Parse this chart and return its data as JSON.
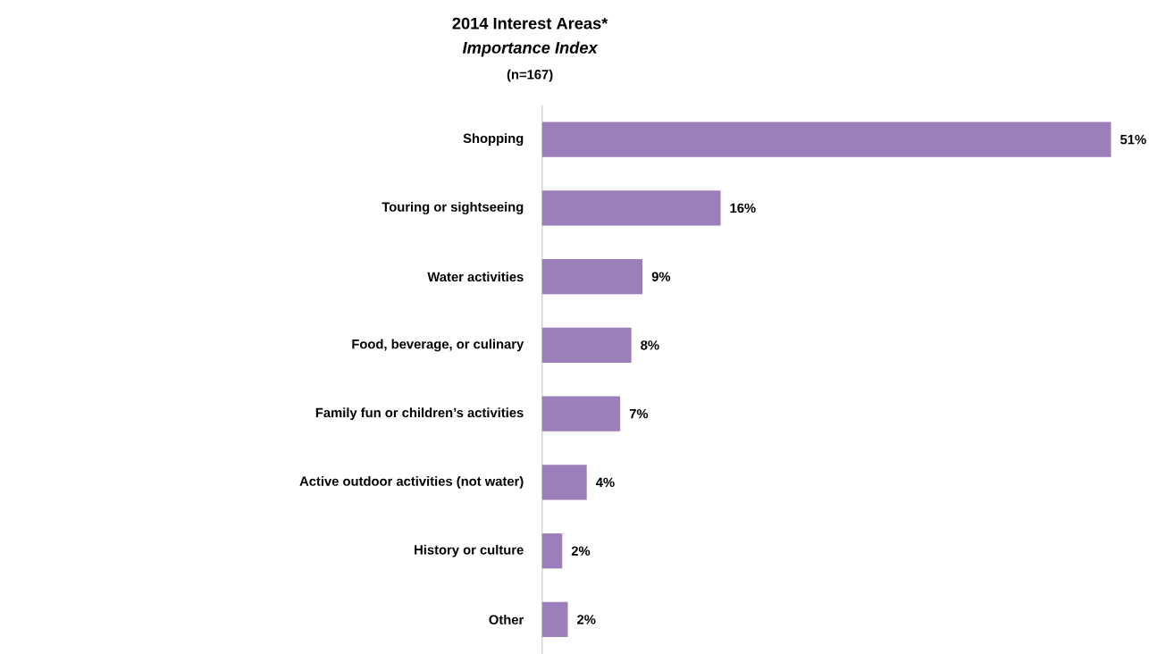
{
  "chart_data": {
    "type": "bar",
    "orientation": "horizontal",
    "title": "2014 Interest Areas*",
    "subtitle": "Importance Index",
    "annotations": [
      "(n=167)"
    ],
    "categories": [
      "Shopping",
      "Touring or sightseeing",
      "Water activities",
      "Food, beverage, or culinary",
      "Family fun or children’s activities",
      "Active outdoor activities (not water)",
      "History or culture",
      "Other"
    ],
    "values": [
      51,
      16,
      9,
      8,
      7,
      4,
      1.8,
      2.3
    ],
    "value_labels": [
      "51%",
      "16%",
      "9%",
      "8%",
      "7%",
      "4%",
      "2%",
      "2%"
    ],
    "color": "#9b7fba"
  }
}
